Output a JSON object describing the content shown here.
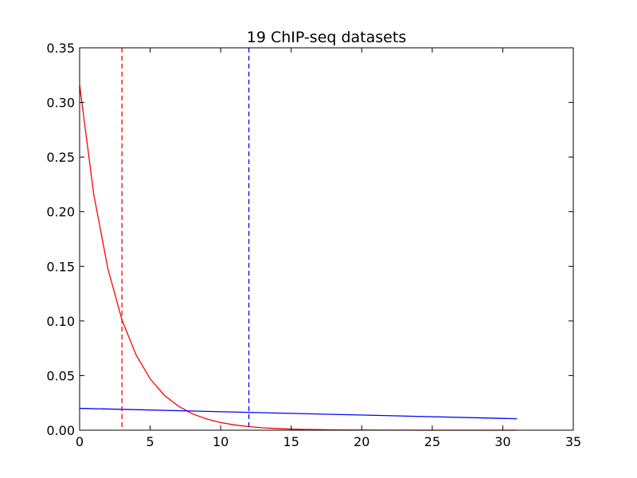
{
  "chart_data": {
    "type": "line",
    "title": "19 ChIP-seq datasets",
    "xlabel": "",
    "ylabel": "",
    "xlim": [
      0,
      35
    ],
    "ylim": [
      0,
      0.35
    ],
    "xticks": [
      0,
      5,
      10,
      15,
      20,
      25,
      30,
      35
    ],
    "yticks": [
      0.0,
      0.05,
      0.1,
      0.15,
      0.2,
      0.25,
      0.3,
      0.35
    ],
    "xtick_labels": [
      "0",
      "5",
      "10",
      "15",
      "20",
      "25",
      "30",
      "35"
    ],
    "ytick_labels": [
      "0.00",
      "0.05",
      "0.10",
      "0.15",
      "0.20",
      "0.25",
      "0.30",
      "0.35"
    ],
    "grid": false,
    "series": [
      {
        "color": "#ff0000",
        "style": "solid",
        "x": [
          0,
          1,
          2,
          3,
          4,
          5,
          6,
          7,
          8,
          9,
          10,
          11,
          12,
          13,
          14,
          15,
          16,
          17,
          18,
          19,
          20,
          21,
          22,
          23,
          24,
          25,
          26,
          27,
          28,
          29,
          30,
          31
        ],
        "y": [
          0.316,
          0.216,
          0.148,
          0.101,
          0.069,
          0.047,
          0.032,
          0.022,
          0.015,
          0.0103,
          0.007,
          0.0048,
          0.0033,
          0.0022,
          0.0015,
          0.001,
          0.0007,
          0.0005,
          0.0003,
          0.0002,
          0.0002,
          0.0001,
          0.0001,
          0.0001,
          0.0,
          0.0,
          0.0,
          0.0,
          0.0,
          0.0,
          0.0,
          0.0
        ]
      },
      {
        "color": "#0000ff",
        "style": "solid",
        "x": [
          0,
          31
        ],
        "y": [
          0.02,
          0.0105
        ]
      }
    ],
    "vlines": [
      {
        "x": 3,
        "color": "#ff0000",
        "style": "dashed"
      },
      {
        "x": 12,
        "color": "#0000ff",
        "style": "dashed"
      }
    ]
  }
}
